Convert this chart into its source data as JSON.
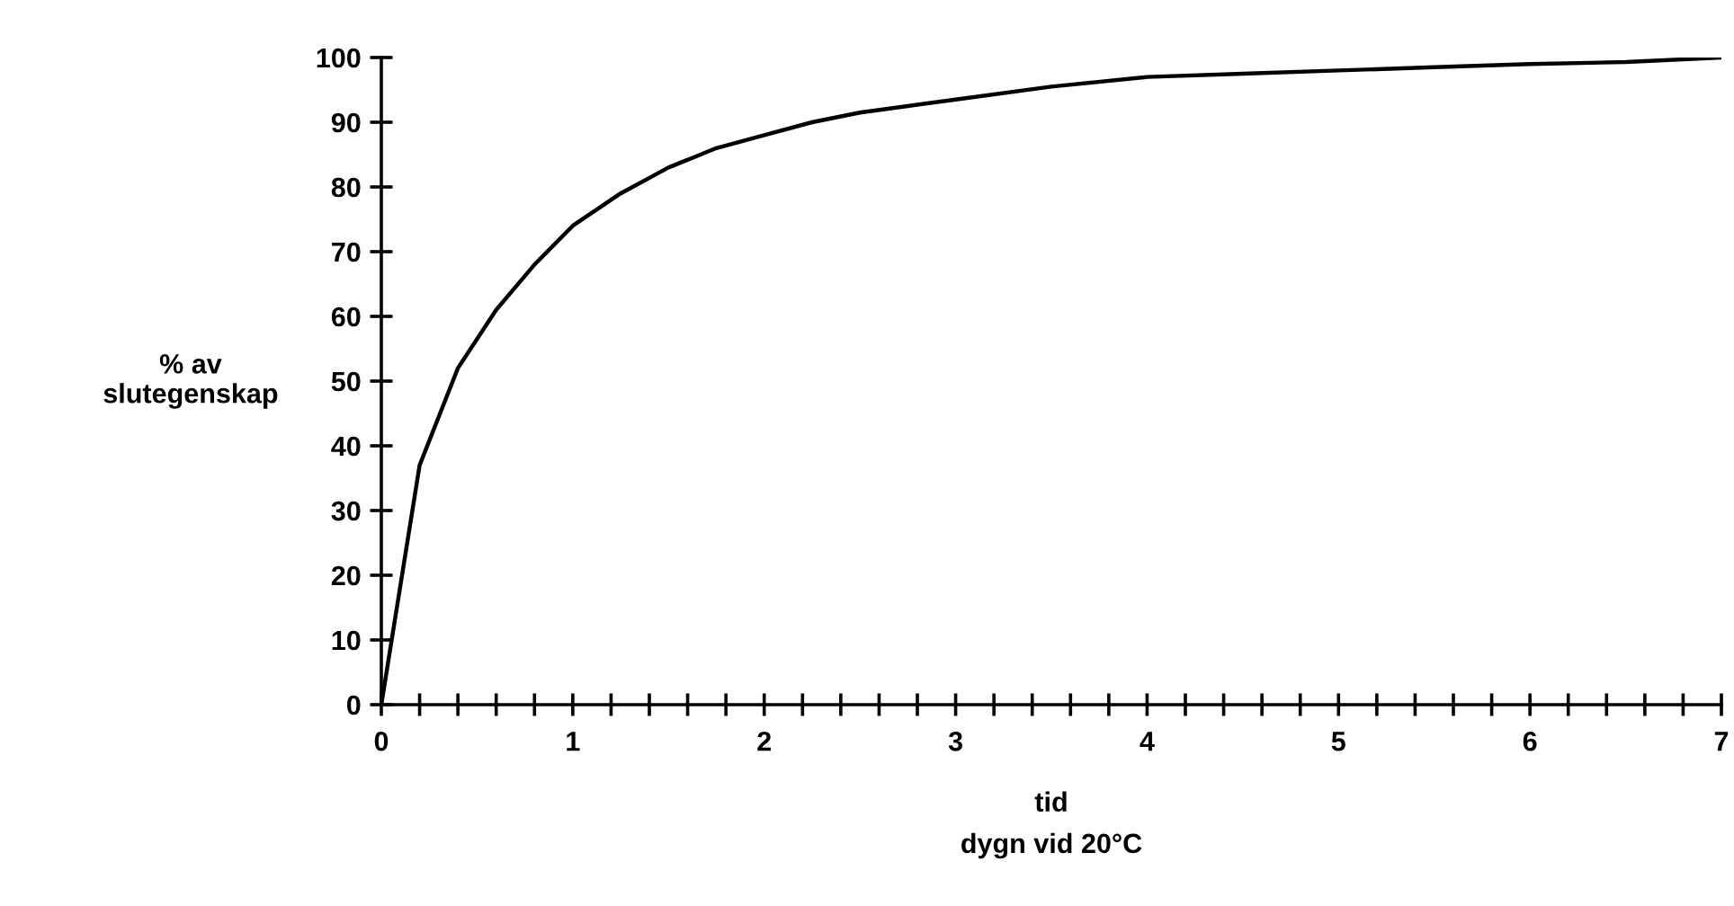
{
  "chart_data": {
    "type": "line",
    "xlabel": "tid\ndygn vid 20°C",
    "ylabel": "% av\nslutegenskap",
    "x": [
      0,
      0.2,
      0.4,
      0.6,
      0.8,
      1,
      1.25,
      1.5,
      1.75,
      2,
      2.25,
      2.5,
      2.75,
      3,
      3.5,
      4,
      4.5,
      5,
      5.5,
      6,
      6.5,
      7
    ],
    "series": [
      {
        "color": "#000000",
        "values": [
          0,
          37,
          52,
          61,
          68,
          74,
          79,
          83,
          86,
          88,
          90,
          91.5,
          92.5,
          93.5,
          95.5,
          97,
          97.5,
          98,
          98.5,
          99,
          99.3,
          100
        ]
      }
    ],
    "xlim": [
      0,
      7
    ],
    "ylim": [
      0,
      100
    ],
    "xticks": [
      0,
      {
        "value": 0.2,
        "label": null
      },
      {
        "value": 0.4,
        "label": null
      },
      {
        "value": 0.6,
        "label": null
      },
      {
        "value": 0.8,
        "label": null
      },
      1,
      {
        "value": 1.2,
        "label": null
      },
      {
        "value": 1.4,
        "label": null
      },
      {
        "value": 1.6,
        "label": null
      },
      {
        "value": 1.8,
        "label": null
      },
      2,
      {
        "value": 2.2,
        "label": null
      },
      {
        "value": 2.4,
        "label": null
      },
      {
        "value": 2.6,
        "label": null
      },
      {
        "value": 2.8,
        "label": null
      },
      3,
      {
        "value": 3.2,
        "label": null
      },
      {
        "value": 3.4,
        "label": null
      },
      {
        "value": 3.6,
        "label": null
      },
      {
        "value": 3.8,
        "label": null
      },
      4,
      {
        "value": 4.2,
        "label": null
      },
      {
        "value": 4.4,
        "label": null
      },
      {
        "value": 4.6,
        "label": null
      },
      {
        "value": 4.8,
        "label": null
      },
      5,
      {
        "value": 5.2,
        "label": null
      },
      {
        "value": 5.4,
        "label": null
      },
      {
        "value": 5.6,
        "label": null
      },
      {
        "value": 5.8,
        "label": null
      },
      6,
      {
        "value": 6.2,
        "label": null
      },
      {
        "value": 6.4,
        "label": null
      },
      {
        "value": 6.6,
        "label": null
      },
      {
        "value": 6.8,
        "label": null
      },
      7
    ],
    "yticks": [
      0,
      10,
      20,
      30,
      40,
      50,
      60,
      70,
      80,
      90,
      100
    ],
    "grid": false,
    "legend": false,
    "marker": "none",
    "line_style": "solid"
  }
}
